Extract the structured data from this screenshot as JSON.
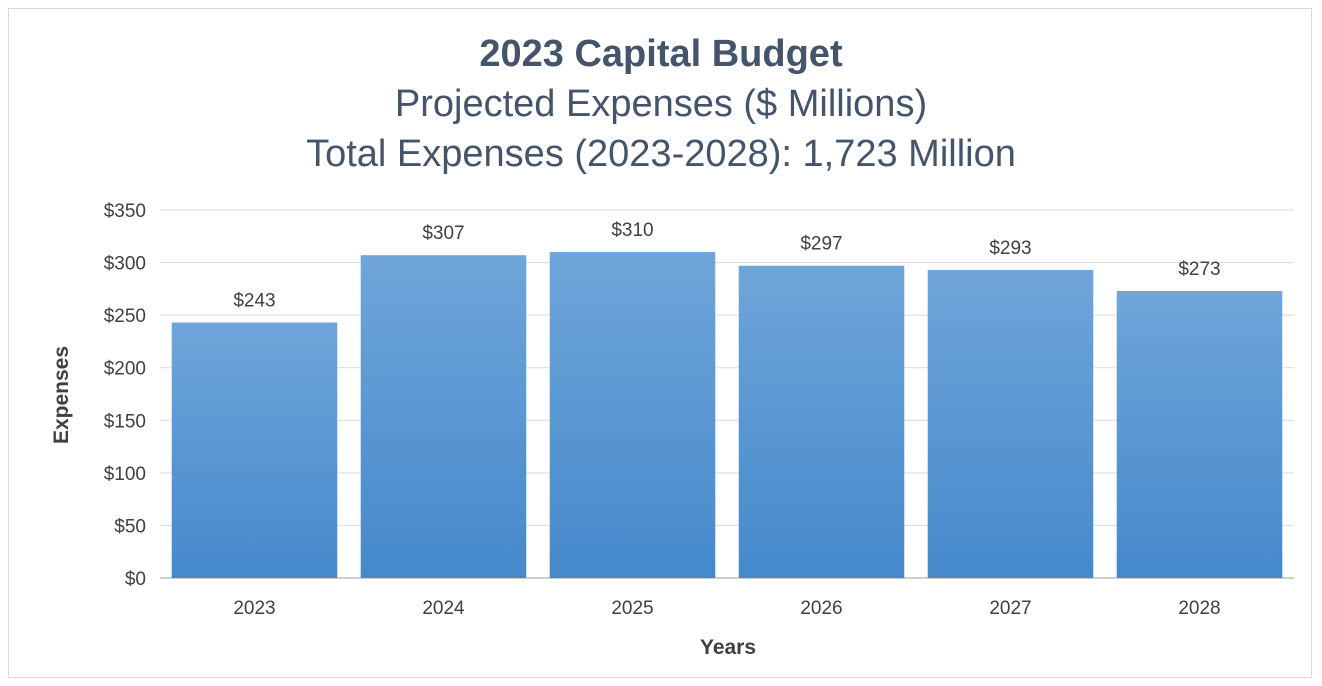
{
  "chart_data": {
    "type": "bar",
    "title": "2023 Capital Budget",
    "subtitle": "Projected Expenses ($ Millions)",
    "subtitle2": "Total Expenses (2023-2028): 1,723 Million",
    "xlabel": "Years",
    "ylabel": "Expenses",
    "categories": [
      "2023",
      "2024",
      "2025",
      "2026",
      "2027",
      "2028"
    ],
    "values": [
      243,
      307,
      310,
      297,
      293,
      273
    ],
    "data_labels": [
      "$243",
      "$307",
      "$310",
      "$297",
      "$293",
      "$273"
    ],
    "ylim": [
      0,
      350
    ],
    "yticks": [
      0,
      50,
      100,
      150,
      200,
      250,
      300,
      350
    ],
    "ytick_labels": [
      "$0",
      "$50",
      "$100",
      "$150",
      "$200",
      "$250",
      "$300",
      "$350"
    ],
    "grid": true,
    "legend": "none",
    "colors": {
      "bar_top": "#6fa5da",
      "bar_bottom": "#4589cb",
      "title": "#44546a",
      "text": "#404040",
      "grid": "#d9d9d9"
    }
  }
}
